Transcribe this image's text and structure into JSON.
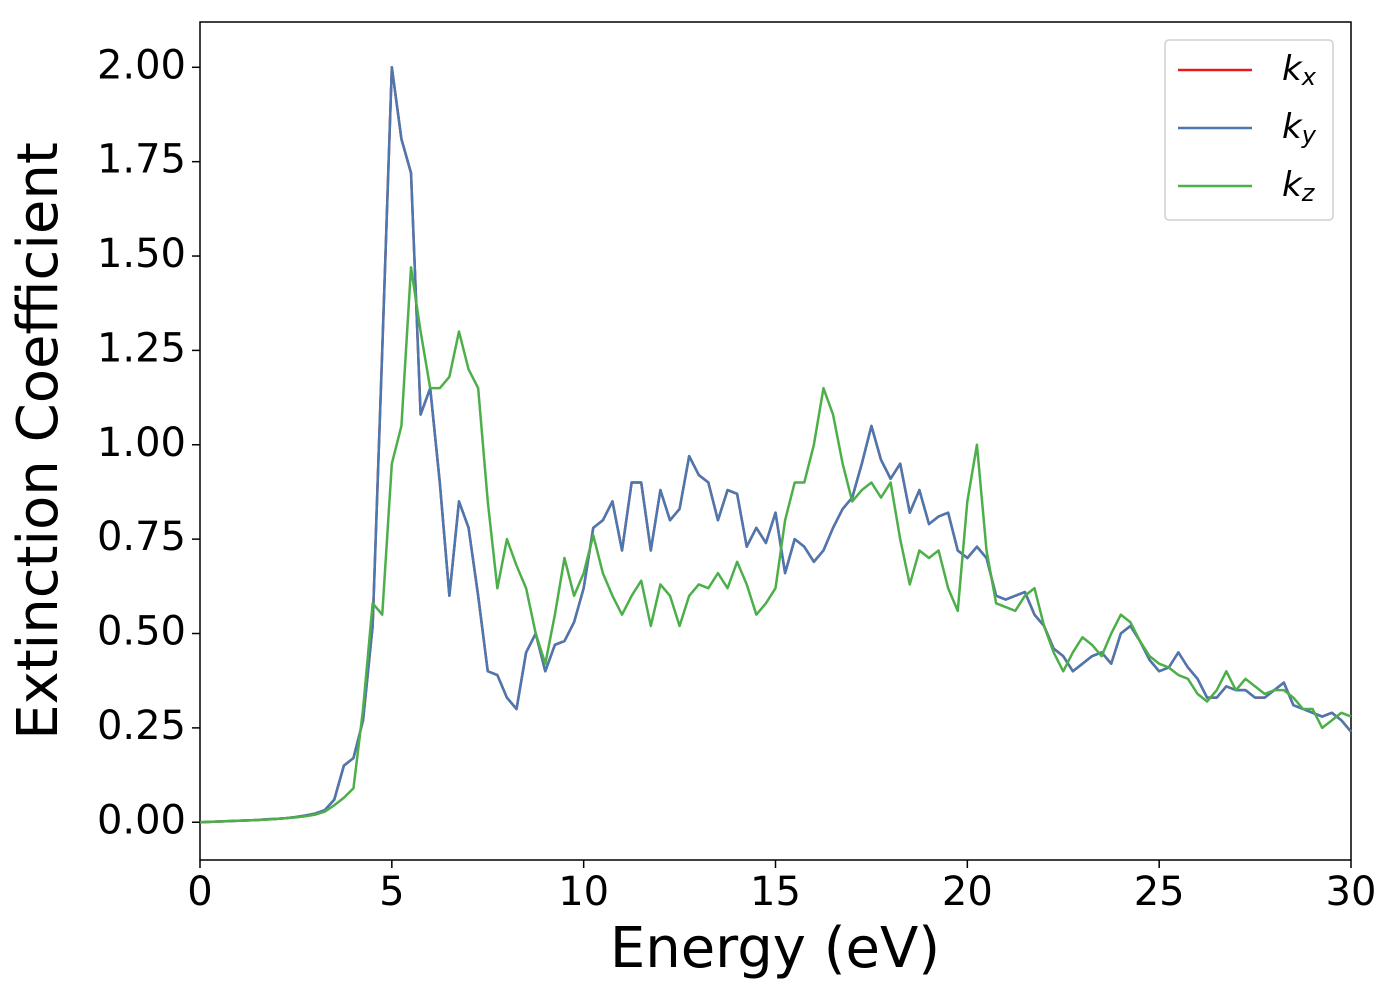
{
  "chart_data": {
    "type": "line",
    "xlabel": "Energy (eV)",
    "ylabel": "Extinction Coefficient",
    "xlim": [
      0,
      30
    ],
    "ylim": [
      -0.1,
      2.12
    ],
    "xticks": [
      0,
      5,
      10,
      15,
      20,
      25,
      30
    ],
    "yticks": [
      {
        "value": 0,
        "label": "0.00"
      },
      {
        "value": 0.25,
        "label": "0.25"
      },
      {
        "value": 0.5,
        "label": "0.50"
      },
      {
        "value": 0.75,
        "label": "0.75"
      },
      {
        "value": 1,
        "label": "1.00"
      },
      {
        "value": 1.25,
        "label": "1.25"
      },
      {
        "value": 1.5,
        "label": "1.50"
      },
      {
        "value": 1.75,
        "label": "1.75"
      },
      {
        "value": 2,
        "label": "2.00"
      }
    ],
    "legend": "upper right",
    "grid": false,
    "x": [
      0,
      0.25,
      0.5,
      0.75,
      1,
      1.25,
      1.5,
      1.75,
      2,
      2.25,
      2.5,
      2.75,
      3,
      3.25,
      3.5,
      3.75,
      4,
      4.25,
      4.5,
      4.75,
      5,
      5.25,
      5.5,
      5.75,
      6,
      6.25,
      6.5,
      6.75,
      7,
      7.25,
      7.5,
      7.75,
      8,
      8.25,
      8.5,
      8.75,
      9,
      9.25,
      9.5,
      9.75,
      10,
      10.25,
      10.5,
      10.75,
      11,
      11.25,
      11.5,
      11.75,
      12,
      12.25,
      12.5,
      12.75,
      13,
      13.25,
      13.5,
      13.75,
      14,
      14.25,
      14.5,
      14.75,
      15,
      15.25,
      15.5,
      15.75,
      16,
      16.25,
      16.5,
      16.75,
      17,
      17.25,
      17.5,
      17.75,
      18,
      18.25,
      18.5,
      18.75,
      19,
      19.25,
      19.5,
      19.75,
      20,
      20.25,
      20.5,
      20.75,
      21,
      21.25,
      21.5,
      21.75,
      22,
      22.25,
      22.5,
      22.75,
      23,
      23.25,
      23.5,
      23.75,
      24,
      24.25,
      24.5,
      24.75,
      25,
      25.25,
      25.5,
      25.75,
      26,
      26.25,
      26.5,
      26.75,
      27,
      27.25,
      27.5,
      27.75,
      28,
      28.25,
      28.5,
      28.75,
      29,
      29.25,
      29.5,
      29.75,
      30
    ],
    "series": [
      {
        "name": "kx",
        "color": "#e41a1c",
        "values": [
          0,
          0.001,
          0.002,
          0.003,
          0.004,
          0.005,
          0.006,
          0.008,
          0.009,
          0.011,
          0.014,
          0.018,
          0.023,
          0.032,
          0.06,
          0.15,
          0.17,
          0.27,
          0.52,
          1.25,
          2.0,
          1.81,
          1.72,
          1.08,
          1.15,
          0.9,
          0.6,
          0.85,
          0.78,
          0.6,
          0.4,
          0.39,
          0.33,
          0.3,
          0.45,
          0.5,
          0.4,
          0.47,
          0.48,
          0.53,
          0.62,
          0.78,
          0.8,
          0.85,
          0.72,
          0.9,
          0.9,
          0.72,
          0.88,
          0.8,
          0.83,
          0.97,
          0.92,
          0.9,
          0.8,
          0.88,
          0.87,
          0.73,
          0.78,
          0.74,
          0.82,
          0.66,
          0.75,
          0.73,
          0.69,
          0.72,
          0.78,
          0.83,
          0.86,
          0.95,
          1.05,
          0.96,
          0.91,
          0.95,
          0.82,
          0.88,
          0.79,
          0.81,
          0.82,
          0.72,
          0.7,
          0.73,
          0.7,
          0.6,
          0.59,
          0.6,
          0.61,
          0.55,
          0.52,
          0.46,
          0.44,
          0.4,
          0.42,
          0.44,
          0.45,
          0.42,
          0.5,
          0.52,
          0.48,
          0.43,
          0.4,
          0.41,
          0.45,
          0.41,
          0.38,
          0.33,
          0.33,
          0.36,
          0.35,
          0.35,
          0.33,
          0.33,
          0.35,
          0.37,
          0.31,
          0.3,
          0.29,
          0.28,
          0.29,
          0.27,
          0.24
        ]
      },
      {
        "name": "ky",
        "color": "#4a78b0",
        "values": [
          0,
          0.001,
          0.002,
          0.003,
          0.004,
          0.005,
          0.006,
          0.008,
          0.009,
          0.011,
          0.014,
          0.018,
          0.023,
          0.032,
          0.06,
          0.15,
          0.17,
          0.27,
          0.52,
          1.25,
          2.0,
          1.81,
          1.72,
          1.08,
          1.15,
          0.9,
          0.6,
          0.85,
          0.78,
          0.6,
          0.4,
          0.39,
          0.33,
          0.3,
          0.45,
          0.5,
          0.4,
          0.47,
          0.48,
          0.53,
          0.62,
          0.78,
          0.8,
          0.85,
          0.72,
          0.9,
          0.9,
          0.72,
          0.88,
          0.8,
          0.83,
          0.97,
          0.92,
          0.9,
          0.8,
          0.88,
          0.87,
          0.73,
          0.78,
          0.74,
          0.82,
          0.66,
          0.75,
          0.73,
          0.69,
          0.72,
          0.78,
          0.83,
          0.86,
          0.95,
          1.05,
          0.96,
          0.91,
          0.95,
          0.82,
          0.88,
          0.79,
          0.81,
          0.82,
          0.72,
          0.7,
          0.73,
          0.7,
          0.6,
          0.59,
          0.6,
          0.61,
          0.55,
          0.52,
          0.46,
          0.44,
          0.4,
          0.42,
          0.44,
          0.45,
          0.42,
          0.5,
          0.52,
          0.48,
          0.43,
          0.4,
          0.41,
          0.45,
          0.41,
          0.38,
          0.33,
          0.33,
          0.36,
          0.35,
          0.35,
          0.33,
          0.33,
          0.35,
          0.37,
          0.31,
          0.3,
          0.29,
          0.28,
          0.29,
          0.27,
          0.24
        ]
      },
      {
        "name": "kz",
        "color": "#4daf4a",
        "values": [
          0,
          0.001,
          0.002,
          0.003,
          0.004,
          0.005,
          0.006,
          0.007,
          0.009,
          0.011,
          0.013,
          0.016,
          0.02,
          0.028,
          0.045,
          0.065,
          0.09,
          0.3,
          0.58,
          0.55,
          0.95,
          1.05,
          1.47,
          1.3,
          1.15,
          1.15,
          1.18,
          1.3,
          1.2,
          1.15,
          0.85,
          0.62,
          0.75,
          0.68,
          0.62,
          0.5,
          0.42,
          0.55,
          0.7,
          0.6,
          0.66,
          0.76,
          0.66,
          0.6,
          0.55,
          0.6,
          0.64,
          0.52,
          0.63,
          0.6,
          0.52,
          0.6,
          0.63,
          0.62,
          0.66,
          0.62,
          0.69,
          0.63,
          0.55,
          0.58,
          0.62,
          0.8,
          0.9,
          0.9,
          1.0,
          1.15,
          1.08,
          0.95,
          0.85,
          0.88,
          0.9,
          0.86,
          0.9,
          0.75,
          0.63,
          0.72,
          0.7,
          0.72,
          0.62,
          0.56,
          0.85,
          1.0,
          0.72,
          0.58,
          0.57,
          0.56,
          0.6,
          0.62,
          0.52,
          0.45,
          0.4,
          0.45,
          0.49,
          0.47,
          0.44,
          0.5,
          0.55,
          0.53,
          0.48,
          0.44,
          0.42,
          0.41,
          0.39,
          0.38,
          0.34,
          0.32,
          0.35,
          0.4,
          0.35,
          0.38,
          0.36,
          0.34,
          0.35,
          0.35,
          0.33,
          0.3,
          0.3,
          0.25,
          0.27,
          0.29,
          0.28
        ]
      }
    ]
  }
}
